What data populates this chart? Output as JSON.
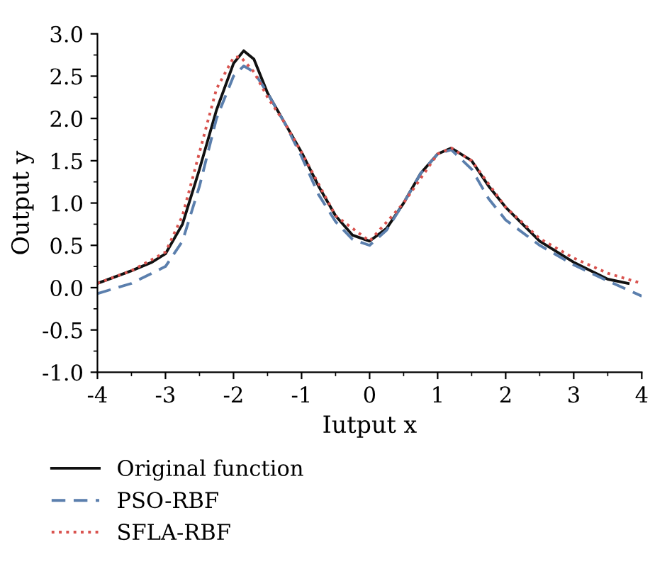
{
  "chart_data": {
    "type": "line",
    "xlabel": "Iutput x",
    "ylabel": "Output y",
    "xlim": [
      -4,
      4
    ],
    "ylim": [
      -1.0,
      3.0
    ],
    "xticks": [
      -4,
      -3,
      -2,
      -1,
      0,
      1,
      2,
      3,
      4
    ],
    "yticks": [
      {
        "value": -1.0,
        "label": "-1.0"
      },
      {
        "value": -0.5,
        "label": "-0.5"
      },
      {
        "value": 0.0,
        "label": "0.0"
      },
      {
        "value": 0.5,
        "label": "0.5"
      },
      {
        "value": 1.0,
        "label": "1.0"
      },
      {
        "value": 1.5,
        "label": "1.5"
      },
      {
        "value": 2.0,
        "label": "2.0"
      },
      {
        "value": 2.5,
        "label": "2.5"
      },
      {
        "value": 3.0,
        "label": "3.0"
      }
    ],
    "grid": false,
    "legend": "bottom left",
    "marker": "none",
    "series": [
      {
        "name": "Original function",
        "color": "#111111",
        "line_style": "solid",
        "x": [
          -4,
          -3.5,
          -3.2,
          -3,
          -2.75,
          -2.5,
          -2.25,
          -2,
          -1.85,
          -1.7,
          -1.5,
          -1.25,
          -1,
          -0.75,
          -0.5,
          -0.25,
          0,
          0.25,
          0.5,
          0.75,
          1,
          1.2,
          1.5,
          1.75,
          2,
          2.5,
          3,
          3.5,
          3.8
        ],
        "values": [
          0.05,
          0.2,
          0.3,
          0.4,
          0.75,
          1.4,
          2.1,
          2.65,
          2.8,
          2.7,
          2.3,
          1.95,
          1.6,
          1.2,
          0.85,
          0.62,
          0.55,
          0.7,
          1.0,
          1.35,
          1.58,
          1.65,
          1.5,
          1.2,
          0.95,
          0.55,
          0.3,
          0.1,
          0.05
        ]
      },
      {
        "name": "PSO-RBF",
        "color": "#5b7fad",
        "line_style": "dashed",
        "x": [
          -4,
          -3.5,
          -3,
          -2.75,
          -2.5,
          -2.25,
          -2,
          -1.85,
          -1.7,
          -1.5,
          -1.25,
          -1,
          -0.75,
          -0.5,
          -0.25,
          0,
          0.25,
          0.5,
          0.75,
          1,
          1.2,
          1.5,
          1.75,
          2,
          2.5,
          3,
          3.5,
          4
        ],
        "values": [
          -0.07,
          0.05,
          0.25,
          0.55,
          1.2,
          2.0,
          2.5,
          2.62,
          2.55,
          2.3,
          1.95,
          1.55,
          1.1,
          0.78,
          0.57,
          0.5,
          0.68,
          1.0,
          1.35,
          1.58,
          1.63,
          1.4,
          1.05,
          0.8,
          0.5,
          0.27,
          0.08,
          -0.1
        ]
      },
      {
        "name": "SFLA-RBF",
        "color": "#d9534f",
        "line_style": "dotted",
        "x": [
          -4,
          -3.5,
          -3,
          -2.75,
          -2.5,
          -2.25,
          -2,
          -1.9,
          -1.7,
          -1.5,
          -1.25,
          -1,
          -0.5,
          0,
          0.5,
          1,
          1.2,
          1.5,
          2,
          2.5,
          3,
          3.5,
          4
        ],
        "values": [
          0.05,
          0.2,
          0.42,
          0.85,
          1.6,
          2.35,
          2.72,
          2.73,
          2.55,
          2.25,
          1.95,
          1.6,
          0.85,
          0.55,
          1.0,
          1.58,
          1.65,
          1.5,
          0.95,
          0.58,
          0.35,
          0.17,
          0.05
        ]
      }
    ]
  }
}
